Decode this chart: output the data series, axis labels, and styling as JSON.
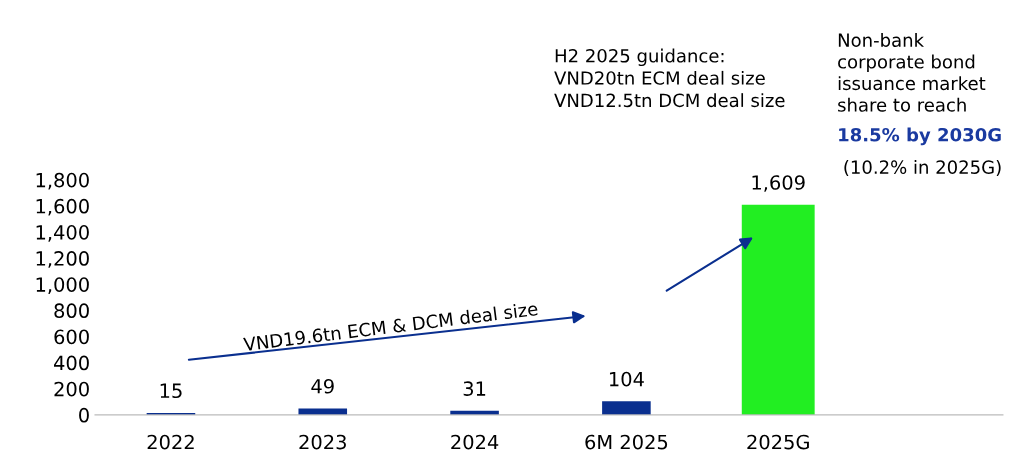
{
  "chart_data": {
    "type": "bar",
    "categories": [
      "2022",
      "2023",
      "2024",
      "6M 2025",
      "2025G"
    ],
    "values": [
      15,
      49,
      31,
      104,
      1609
    ],
    "colors": [
      "#0a2f8f",
      "#0a2f8f",
      "#0a2f8f",
      "#0a2f8f",
      "#22ee22"
    ],
    "value_labels": [
      "15",
      "49",
      "31",
      "104",
      "1,609"
    ],
    "ylim": [
      0,
      1800
    ],
    "yticks": [
      0,
      200,
      400,
      600,
      800,
      {
        "value": 1000,
        "label": "1,000"
      },
      {
        "value": 1200,
        "label": "1,200"
      },
      {
        "value": 1400,
        "label": "1,400"
      },
      {
        "value": 1600,
        "label": "1,600"
      },
      {
        "value": 1800,
        "label": "1,800"
      }
    ],
    "grid": false,
    "annotations": [
      "VND19.6tn ECM & DCM deal size",
      "H2 2025 guidance:\nVND20tn ECM deal size\nVND12.5tn DCM deal size",
      "Non-bank\ncorporate bond\nissuance market\nshare to reach",
      "18.5% by 2030G",
      " (10.2% in 2025G)"
    ]
  }
}
